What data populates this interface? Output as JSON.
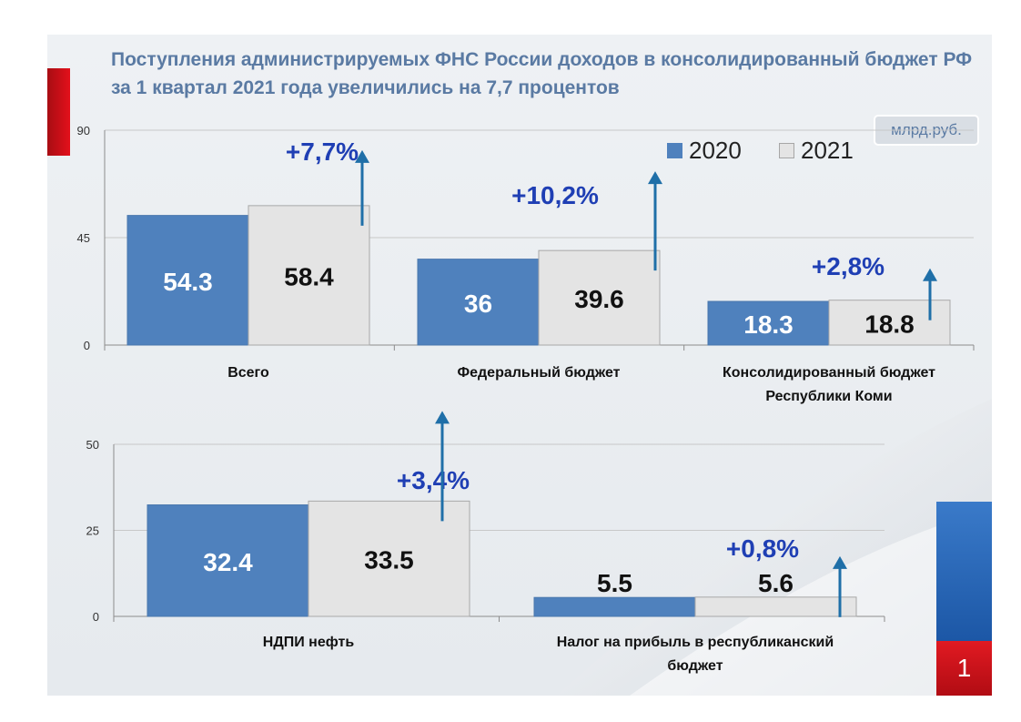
{
  "title": "Поступления администрируемых ФНС России доходов в консолидированный бюджет РФ за 1 квартал 2021 года увеличились на 7,7 процентов",
  "unit": "млрд.руб.",
  "page_number": "1",
  "legend": {
    "label_2020": "2020",
    "label_2021": "2021"
  },
  "colors": {
    "series_2020": "#4f81bd",
    "series_2021": "#e4e4e4",
    "growth": "#1f3fb4",
    "arrow": "#1f6fa8",
    "title": "#5a7aa3",
    "accent_red": "#e3101b",
    "accent_blue": "#2a6cc0"
  },
  "chart_data": [
    {
      "type": "bar",
      "categories": [
        [
          "Всего"
        ],
        [
          "Федеральный бюджет"
        ],
        [
          "Консолидированный бюджет",
          "Республики Коми"
        ]
      ],
      "series": [
        {
          "name": "2020",
          "values": [
            54.3,
            36,
            18.3
          ],
          "labels": [
            "54.3",
            "36",
            "18.3"
          ]
        },
        {
          "name": "2021",
          "values": [
            58.4,
            39.6,
            18.8
          ],
          "labels": [
            "58.4",
            "39.6",
            "18.8"
          ]
        }
      ],
      "growth_labels": [
        "+7,7%",
        "+10,2%",
        "+2,8%"
      ],
      "ylim": [
        0,
        90
      ],
      "yticks": [
        0,
        45,
        90
      ],
      "grid": true,
      "legend_position": "top-right"
    },
    {
      "type": "bar",
      "categories": [
        [
          "НДПИ нефть"
        ],
        [
          "Налог на прибыль в республиканский",
          "бюджет"
        ]
      ],
      "series": [
        {
          "name": "2020",
          "values": [
            32.4,
            5.5
          ],
          "labels": [
            "32.4",
            "5.5"
          ]
        },
        {
          "name": "2021",
          "values": [
            33.5,
            5.6
          ],
          "labels": [
            "33.5",
            "5.6"
          ]
        }
      ],
      "growth_labels": [
        "+3,4%",
        "+0,8%"
      ],
      "ylim": [
        0,
        50
      ],
      "yticks": [
        0,
        25,
        50
      ],
      "grid": true
    }
  ]
}
